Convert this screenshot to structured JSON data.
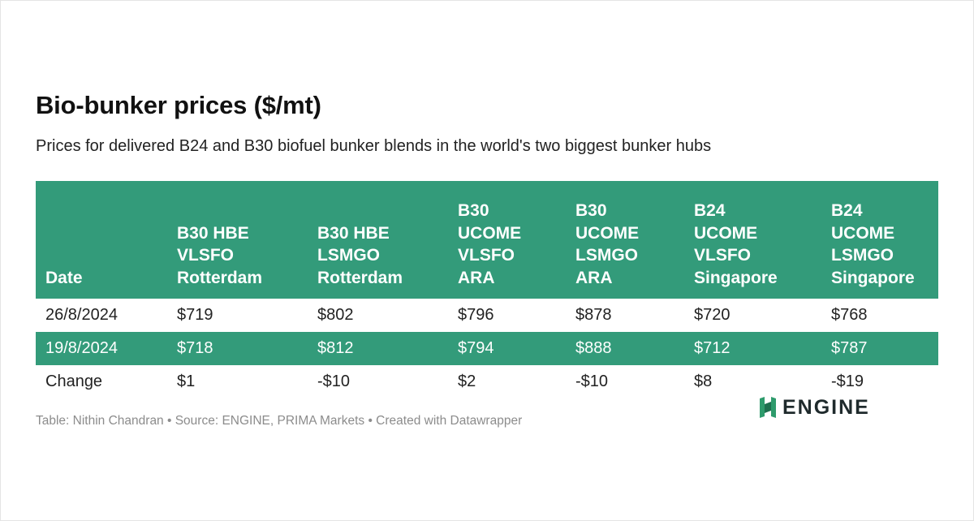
{
  "title": "Bio-bunker prices ($/mt)",
  "subtitle": "Prices for delivered B24 and B30 biofuel bunker blends in the world's two biggest bunker hubs",
  "colors": {
    "header_bg": "#339b7a",
    "header_text": "#ffffff",
    "body_text": "#222222",
    "footer_text": "#8c8c8c",
    "logo_green": "#2e9b6c",
    "logo_text": "#1f2a2c"
  },
  "chart_data": {
    "type": "table",
    "columns": [
      [
        "Date"
      ],
      [
        "B30 HBE",
        "VLSFO",
        "Rotterdam"
      ],
      [
        "B30 HBE",
        "LSMGO",
        "Rotterdam"
      ],
      [
        "B30",
        "UCOME",
        "VLSFO",
        "ARA"
      ],
      [
        "B30",
        "UCOME",
        "LSMGO",
        "ARA"
      ],
      [
        "B24",
        "UCOME",
        "VLSFO",
        "Singapore"
      ],
      [
        "B24",
        "UCOME",
        "LSMGO",
        "Singapore"
      ]
    ],
    "rows": [
      [
        "26/8/2024",
        "$719",
        "$802",
        "$796",
        "$878",
        "$720",
        "$768"
      ],
      [
        "19/8/2024",
        "$718",
        "$812",
        "$794",
        "$888",
        "$712",
        "$787"
      ],
      [
        "Change",
        "$1",
        "-$10",
        "$2",
        "-$10",
        "$8",
        "-$19"
      ]
    ],
    "shaded_rows": [
      1
    ]
  },
  "footer": "Table: Nithin Chandran • Source: ENGINE, PRIMA Markets • Created with Datawrapper",
  "logo": {
    "icon": "engine-logo-icon",
    "text": "ENGINE"
  }
}
